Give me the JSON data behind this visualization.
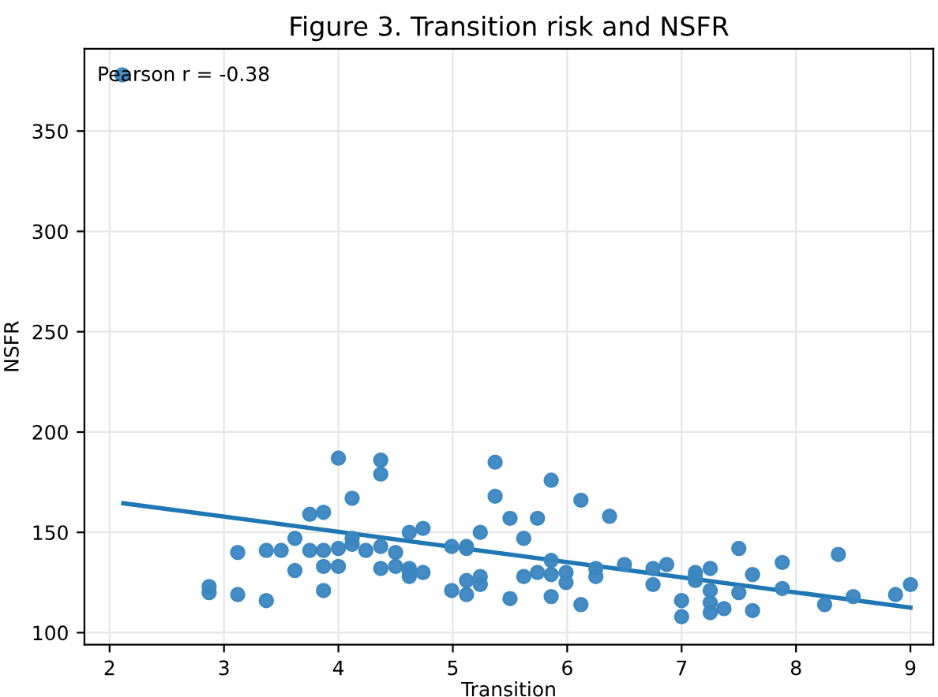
{
  "chart_data": {
    "type": "scatter",
    "title": "Figure 3. Transition risk and NSFR",
    "xlabel": "Transition",
    "ylabel": "NSFR",
    "annotations": [
      "Pearson r = -0.38"
    ],
    "xlim": [
      1.78,
      9.2
    ],
    "ylim": [
      94,
      391
    ],
    "xticks": [
      2,
      3,
      4,
      5,
      6,
      7,
      8,
      9
    ],
    "yticks": [
      100,
      150,
      200,
      250,
      300,
      350
    ],
    "grid": true,
    "series": [
      {
        "marker": "circle",
        "color": "#3a86c0",
        "x": [
          2.11,
          2.87,
          2.87,
          3.12,
          3.12,
          3.37,
          3.37,
          3.5,
          3.62,
          3.62,
          3.75,
          3.75,
          3.87,
          3.87,
          3.87,
          3.87,
          4.0,
          4.0,
          4.0,
          4.12,
          4.12,
          4.12,
          4.24,
          4.37,
          4.37,
          4.37,
          4.37,
          4.5,
          4.5,
          4.62,
          4.62,
          4.62,
          4.62,
          4.74,
          4.74,
          4.99,
          4.99,
          5.12,
          5.12,
          5.12,
          5.12,
          5.24,
          5.24,
          5.24,
          5.37,
          5.37,
          5.5,
          5.5,
          5.62,
          5.62,
          5.74,
          5.74,
          5.86,
          5.86,
          5.86,
          5.86,
          5.99,
          5.99,
          6.12,
          6.12,
          6.25,
          6.25,
          6.37,
          6.5,
          6.75,
          6.75,
          6.87,
          7.0,
          7.0,
          7.12,
          7.12,
          7.12,
          7.25,
          7.25,
          7.25,
          7.25,
          7.37,
          7.5,
          7.5,
          7.62,
          7.62,
          7.88,
          7.88,
          8.25,
          8.37,
          8.5,
          8.87,
          9.0
        ],
        "values": [
          378,
          123,
          120,
          140,
          119,
          141,
          116,
          141,
          147,
          131,
          159,
          141,
          160,
          141,
          133,
          121,
          187,
          142,
          133,
          167,
          147,
          144,
          141,
          186,
          179,
          143,
          132,
          140,
          133,
          150,
          132,
          130,
          128,
          152,
          130,
          143,
          121,
          143,
          142,
          126,
          119,
          150,
          128,
          124,
          185,
          168,
          157,
          117,
          147,
          128,
          157,
          130,
          176,
          136,
          129,
          118,
          130,
          125,
          166,
          114,
          132,
          128,
          158,
          134,
          132,
          124,
          134,
          116,
          108,
          130,
          128,
          126,
          132,
          121,
          115,
          110,
          112,
          142,
          120,
          129,
          111,
          135,
          122,
          114,
          139,
          118,
          119,
          124
        ]
      },
      {
        "type": "line",
        "color": "#1f77b4",
        "x": [
          2.12,
          9.0
        ],
        "values": [
          164.5,
          112.5
        ]
      }
    ]
  }
}
